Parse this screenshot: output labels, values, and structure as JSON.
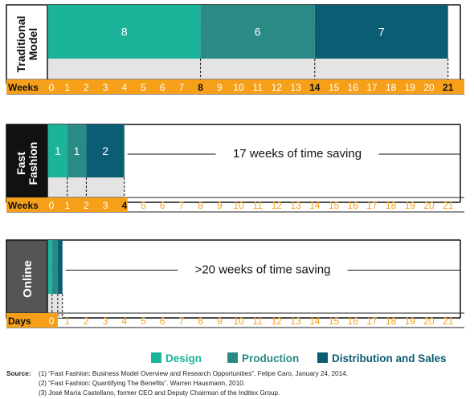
{
  "chart_data": {
    "type": "bar",
    "colors": {
      "design": "#1bb39a",
      "production": "#2a8a85",
      "distribution": "#0b5d74",
      "axis_orange": "#f6a01a",
      "axis_text": "#ffffff",
      "bottom_band": "#e4e4e4",
      "traditional_label_bg": "#ffffff",
      "fast_label_bg": "#111111",
      "online_label_bg": "#555555"
    },
    "ticks": [
      "0",
      "1",
      "2",
      "3",
      "4",
      "5",
      "6",
      "7",
      "8",
      "9",
      "10",
      "11",
      "12",
      "13",
      "14",
      "15",
      "16",
      "17",
      "18",
      "19",
      "20",
      "21"
    ],
    "panels": [
      {
        "label": "Traditional\nModel",
        "axis_label": "Weeks",
        "segments": [
          {
            "phase": "Design",
            "start": 0,
            "end": 8,
            "value_label": "8"
          },
          {
            "phase": "Production",
            "start": 8,
            "end": 14,
            "value_label": "6"
          },
          {
            "phase": "Distribution and Sales",
            "start": 14,
            "end": 21,
            "value_label": "7"
          }
        ],
        "saving_text": "",
        "highlight_ticks": [
          "8",
          "14",
          "21"
        ]
      },
      {
        "label": "Fast\nFashion",
        "axis_label": "Weeks",
        "segments": [
          {
            "phase": "Design",
            "start": 0,
            "end": 1,
            "value_label": "1"
          },
          {
            "phase": "Production",
            "start": 1,
            "end": 2,
            "value_label": "1"
          },
          {
            "phase": "Distribution and Sales",
            "start": 2,
            "end": 4,
            "value_label": "2"
          }
        ],
        "saving_text": "17 weeks of time saving",
        "highlight_ticks": [
          "4"
        ]
      },
      {
        "label": "Online",
        "axis_label": "Days",
        "segments": [
          {
            "phase": "Design",
            "start": 0,
            "end": 0.2,
            "value_label": ""
          },
          {
            "phase": "Production",
            "start": 0.2,
            "end": 0.5,
            "value_label": ""
          },
          {
            "phase": "Distribution and Sales",
            "start": 0.5,
            "end": 0.75,
            "value_label": ""
          }
        ],
        "saving_text": ">20 weeks of time saving",
        "highlight_ticks": []
      }
    ],
    "legend": [
      {
        "name": "Design",
        "color": "#1bb39a"
      },
      {
        "name": "Production",
        "color": "#2a8a85"
      },
      {
        "name": "Distribution and Sales",
        "color": "#0b5d74"
      }
    ],
    "legend_position": "bottom-right"
  },
  "source": {
    "label": "Source:",
    "lines": [
      "(1) “Fast Fashion: Business Model Overview and Research Opportunities”.  Felipe Caro, January 24, 2014.",
      "(2) “Fast Fashion: Quantifying The Benefits”. Warren Hausmann, 2010.",
      "(3) José María Castellano, former CEO and Deputy Chairman of the Inditex Group."
    ]
  }
}
